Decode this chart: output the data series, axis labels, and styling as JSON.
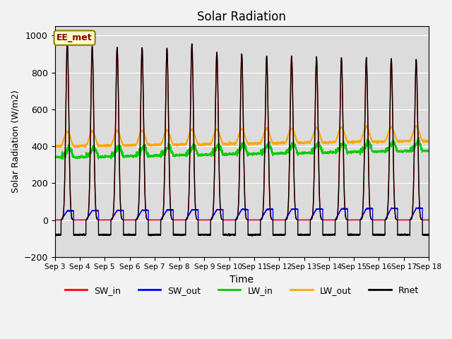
{
  "title": "Solar Radiation",
  "xlabel": "Time",
  "ylabel": "Solar Radiation (W/m2)",
  "ylim": [
    -200,
    1050
  ],
  "yticks": [
    -200,
    0,
    200,
    400,
    600,
    800,
    1000
  ],
  "x_tick_labels": [
    "Sep 3",
    "Sep 4",
    "Sep 5",
    "Sep 6",
    "Sep 7",
    "Sep 8",
    "Sep 9",
    "Sep 10",
    "Sep 11",
    "Sep 12",
    "Sep 13",
    "Sep 14",
    "Sep 15",
    "Sep 16",
    "Sep 17",
    "Sep 18"
  ],
  "annotation_text": "EE_met",
  "annotation_color": "#8B0000",
  "annotation_bg": "#FFFFCC",
  "annotation_border": "#8B8000",
  "colors": {
    "SW_in": "#FF0000",
    "SW_out": "#0000FF",
    "LW_in": "#00CC00",
    "LW_out": "#FFA500",
    "Rnet": "#000000"
  },
  "bg_color": "#DCDCDC",
  "n_days": 15,
  "points_per_day": 288,
  "sw_in_peaks": [
    970,
    940,
    935,
    935,
    930,
    955,
    910,
    900,
    890,
    890,
    885,
    880,
    880,
    875,
    870
  ],
  "rnet_peaks": [
    970,
    940,
    935,
    935,
    930,
    955,
    910,
    900,
    890,
    890,
    885,
    880,
    880,
    875,
    870
  ],
  "rnet_night": -80,
  "lw_in_base": 340,
  "lw_out_base": 400
}
